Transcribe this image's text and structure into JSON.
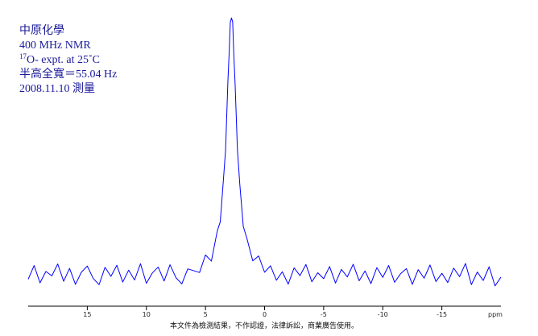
{
  "chart_data": {
    "type": "line",
    "notes": [
      "中原化學",
      "400 MHz NMR",
      {
        "sup": "17",
        "text": "O- expt. at 25˚C"
      },
      "半高全寬＝55.04 Hz",
      "2008.11.10 測量"
    ],
    "footer": "本文件為檢測結果，不作認證，法律訴訟，商業廣告使用。",
    "x_label": "ppm",
    "color": "#0000ff",
    "xlim": [
      20,
      -20
    ],
    "ylim": [
      -6,
      100
    ],
    "xticks": [
      15,
      10,
      5,
      0,
      -5,
      -10,
      -15
    ],
    "x": [
      20,
      19.5,
      19,
      18.5,
      18,
      17.5,
      17,
      16.5,
      16,
      15.5,
      15,
      14.5,
      14,
      13.5,
      13,
      12.5,
      12,
      11.5,
      11,
      10.5,
      10,
      9.5,
      9,
      8.5,
      8,
      7.5,
      7,
      6.5,
      6,
      5.5,
      5,
      4.5,
      4,
      3.75,
      3.5,
      3.3,
      3.1,
      3,
      2.9,
      2.8,
      2.7,
      2.6,
      2.5,
      2.3,
      2.1,
      1.8,
      1.5,
      1,
      0.5,
      0,
      -0.5,
      -1,
      -1.5,
      -2,
      -2.5,
      -3,
      -3.5,
      -4,
      -4.5,
      -5,
      -5.5,
      -6,
      -6.5,
      -7,
      -7.5,
      -8,
      -8.5,
      -9,
      -9.5,
      -10,
      -10.5,
      -11,
      -11.5,
      -12,
      -12.5,
      -13,
      -13.5,
      -14,
      -14.5,
      -15,
      -15.5,
      -16,
      -16.5,
      -17,
      -17.5,
      -18,
      -18.5,
      -19,
      -19.5,
      -20
    ],
    "values": [
      -1.8,
      3.5,
      -3.2,
      1.2,
      -0.5,
      4.1,
      -2.6,
      2.4,
      -3.8,
      0.9,
      3.3,
      -1.5,
      -3.9,
      2.8,
      -0.7,
      3.6,
      -2.9,
      1.7,
      -2.1,
      4.2,
      -3.4,
      0.6,
      2.9,
      -2.5,
      3.8,
      -1.2,
      -3.6,
      2.2,
      1.5,
      0.8,
      7.6,
      5.2,
      16.9,
      20.4,
      35.6,
      48.1,
      75.2,
      85.4,
      97.6,
      99.3,
      97.8,
      84.9,
      74.6,
      48.7,
      35.2,
      18.6,
      14.1,
      5.3,
      7.2,
      0.9,
      3.4,
      -2.2,
      1.1,
      -3.7,
      2.6,
      -0.4,
      3.9,
      -2.8,
      0.7,
      -1.6,
      3.1,
      -3.3,
      2.0,
      -0.9,
      4.0,
      -2.4,
      1.4,
      -3.5,
      2.7,
      -1.1,
      3.5,
      -3.0,
      0.3,
      2.3,
      -3.8,
      1.9,
      -1.4,
      3.7,
      -2.7,
      0.5,
      -3.1,
      2.5,
      -0.8,
      4.3,
      -3.9,
      1.0,
      -2.3,
      3.0,
      -4.4,
      -1.0
    ]
  }
}
